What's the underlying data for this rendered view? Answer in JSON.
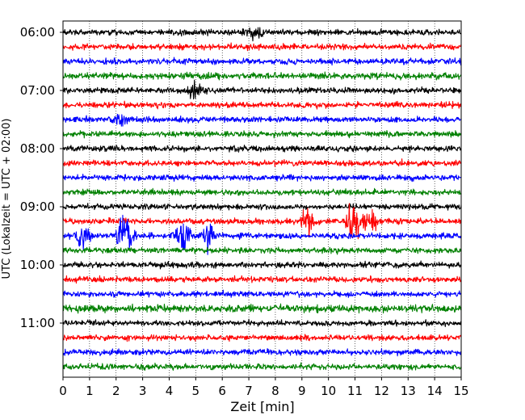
{
  "chart_data": {
    "type": "line",
    "title": "",
    "xlabel": "Zeit  [min]",
    "ylabel": "UTC (Lokalzeit = UTC + 02:00)",
    "xlim": [
      0,
      15
    ],
    "x_ticks": [
      "0",
      "1",
      "2",
      "3",
      "4",
      "5",
      "6",
      "7",
      "8",
      "9",
      "10",
      "11",
      "12",
      "13",
      "14",
      "15"
    ],
    "y_tick_labels": [
      "06:00",
      "07:00",
      "08:00",
      "09:00",
      "10:00",
      "11:00"
    ],
    "grid": "vertical dotted",
    "legend": "none",
    "trace_interval_minutes": 15,
    "color_cycle": [
      "#000000",
      "#ff0000",
      "#0000ff",
      "#008000"
    ],
    "traces": [
      {
        "start": "06:00",
        "color": "#000000",
        "amplitude": 1.0,
        "events": [
          {
            "x": 7.2,
            "amp": 2.5
          }
        ]
      },
      {
        "start": "06:15",
        "color": "#ff0000",
        "amplitude": 1.0,
        "events": []
      },
      {
        "start": "06:30",
        "color": "#0000ff",
        "amplitude": 1.0,
        "events": []
      },
      {
        "start": "06:45",
        "color": "#008000",
        "amplitude": 1.1,
        "events": []
      },
      {
        "start": "07:00",
        "color": "#000000",
        "amplitude": 1.0,
        "events": [
          {
            "x": 4.9,
            "amp": 2.3
          }
        ]
      },
      {
        "start": "07:15",
        "color": "#ff0000",
        "amplitude": 1.0,
        "events": []
      },
      {
        "start": "07:30",
        "color": "#0000ff",
        "amplitude": 1.0,
        "events": [
          {
            "x": 2.2,
            "amp": 3.0
          }
        ]
      },
      {
        "start": "07:45",
        "color": "#008000",
        "amplitude": 1.0,
        "events": []
      },
      {
        "start": "08:00",
        "color": "#000000",
        "amplitude": 1.0,
        "events": []
      },
      {
        "start": "08:15",
        "color": "#ff0000",
        "amplitude": 1.0,
        "events": []
      },
      {
        "start": "08:30",
        "color": "#0000ff",
        "amplitude": 1.0,
        "events": []
      },
      {
        "start": "08:45",
        "color": "#008000",
        "amplitude": 1.0,
        "events": []
      },
      {
        "start": "09:00",
        "color": "#000000",
        "amplitude": 1.0,
        "events": []
      },
      {
        "start": "09:15",
        "color": "#ff0000",
        "amplitude": 1.0,
        "events": [
          {
            "x": 9.2,
            "amp": 4.5
          },
          {
            "x": 10.9,
            "amp": 8.0
          },
          {
            "x": 11.6,
            "amp": 4.0
          }
        ]
      },
      {
        "start": "09:30",
        "color": "#0000ff",
        "amplitude": 1.0,
        "events": [
          {
            "x": 0.8,
            "amp": 4.0
          },
          {
            "x": 2.3,
            "amp": 7.0
          },
          {
            "x": 4.5,
            "amp": 5.5
          },
          {
            "x": 5.5,
            "amp": 4.0
          }
        ]
      },
      {
        "start": "09:45",
        "color": "#008000",
        "amplitude": 1.0,
        "events": []
      },
      {
        "start": "10:00",
        "color": "#000000",
        "amplitude": 1.0,
        "events": []
      },
      {
        "start": "10:15",
        "color": "#ff0000",
        "amplitude": 1.0,
        "events": []
      },
      {
        "start": "10:30",
        "color": "#0000ff",
        "amplitude": 1.0,
        "events": []
      },
      {
        "start": "10:45",
        "color": "#008000",
        "amplitude": 1.3,
        "events": []
      },
      {
        "start": "11:00",
        "color": "#000000",
        "amplitude": 1.0,
        "events": []
      },
      {
        "start": "11:15",
        "color": "#ff0000",
        "amplitude": 1.0,
        "events": []
      },
      {
        "start": "11:30",
        "color": "#0000ff",
        "amplitude": 1.0,
        "events": []
      },
      {
        "start": "11:45",
        "color": "#008000",
        "amplitude": 1.0,
        "events": []
      }
    ]
  }
}
